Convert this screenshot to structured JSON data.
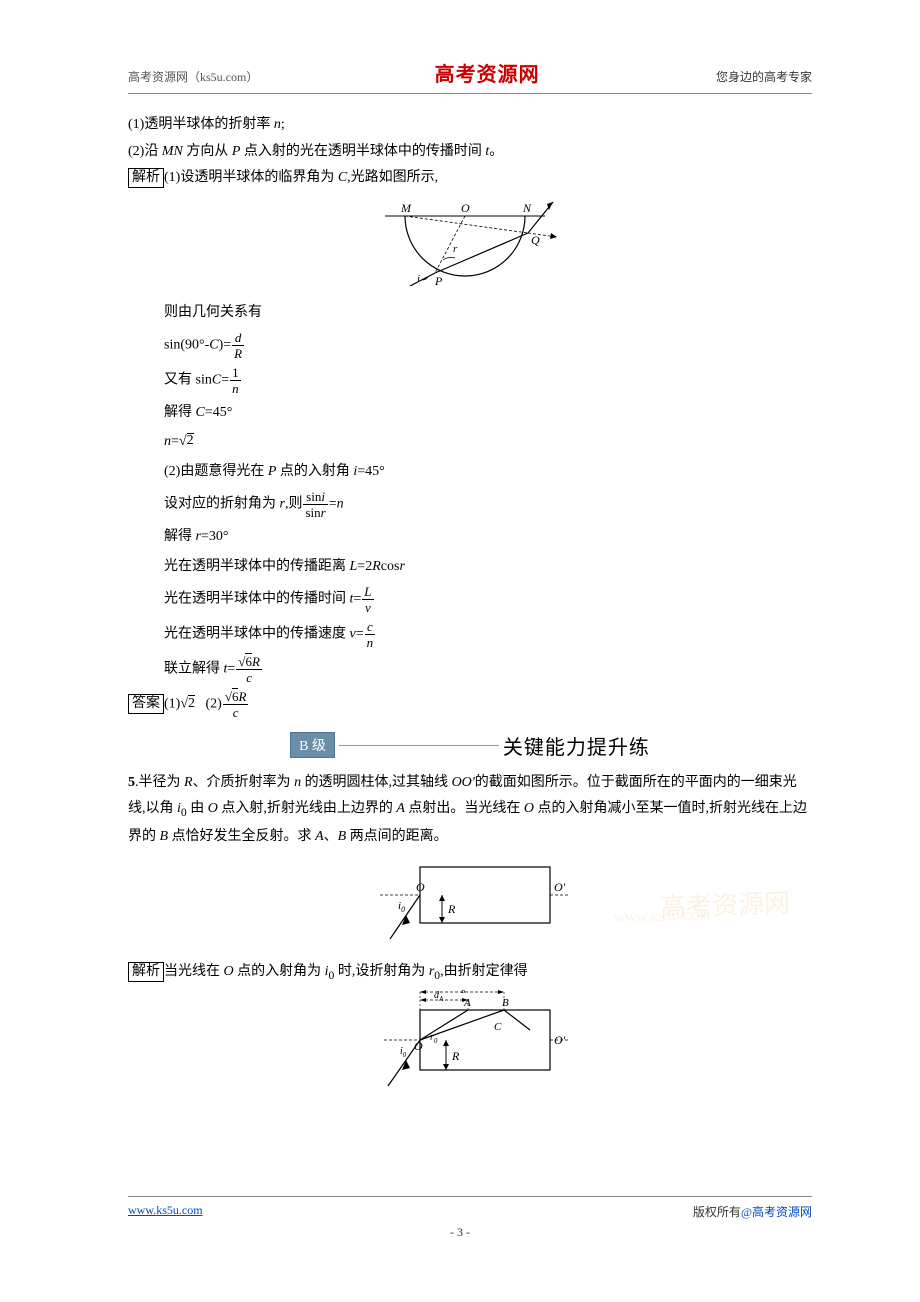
{
  "header": {
    "left": "高考资源网（ks5u.com）",
    "center": "高考资源网",
    "right": "您身边的高考专家"
  },
  "intro": {
    "line1_pre": "(1)透明半球体的折射率 ",
    "line1_var": "n",
    "line1_post": ";",
    "line2_pre": "(2)沿 ",
    "line2_mn": "MN",
    "line2_mid": " 方向从 ",
    "line2_p": "P",
    "line2_mid2": " 点入射的光在透明半球体中的传播时间 ",
    "line2_t": "t",
    "line2_end": "。",
    "jiexi_label": "解析",
    "jiexi_text_pre": "(1)设透明半球体的临界角为 ",
    "jiexi_c": "C",
    "jiexi_text_post": ",光路如图所示,"
  },
  "diagram1": {
    "labels": {
      "M": "M",
      "O": "O",
      "N": "N",
      "Q": "Q",
      "P": "P",
      "i": "i",
      "r": "r"
    },
    "colors": {
      "stroke": "#000000"
    }
  },
  "work": {
    "l1": "则由几何关系有",
    "l2_pre": "sin(90°-",
    "l2_c": "C",
    "l2_mid": ")=",
    "l2_num": "d",
    "l2_den": "R",
    "l3_pre": "又有 sin",
    "l3_c": "C",
    "l3_eq": "=",
    "l3_num": "1",
    "l3_den": "n",
    "l4_pre": "解得 ",
    "l4_c": "C",
    "l4_post": "=45°",
    "l5_n": "n",
    "l5_eq": "=",
    "l5_root": "√2",
    "l6_pre": "(2)由题意得光在 ",
    "l6_p": "P",
    "l6_mid": " 点的入射角 ",
    "l6_i": "i",
    "l6_post": "=45°",
    "l7_pre": "设对应的折射角为 ",
    "l7_r": "r",
    "l7_mid": ",则",
    "l7_num_pre": "sin",
    "l7_num_i": "i",
    "l7_den_pre": "sin",
    "l7_den_r": "r",
    "l7_eq": "=",
    "l7_n": "n",
    "l8_pre": "解得 ",
    "l8_r": "r",
    "l8_post": "=30°",
    "l9_pre": "光在透明半球体中的传播距离 ",
    "l9_L": "L",
    "l9_mid": "=2",
    "l9_R": "R",
    "l9_cos": "cos",
    "l9_r": "r",
    "l10_pre": "光在透明半球体中的传播时间 ",
    "l10_t": "t",
    "l10_eq": "=",
    "l10_num": "L",
    "l10_den": "v",
    "l11_pre": "光在透明半球体中的传播速度 ",
    "l11_v": "v",
    "l11_eq": "=",
    "l11_num": "c",
    "l11_den": "n",
    "l12_pre": "联立解得 ",
    "l12_t": "t",
    "l12_eq": "=",
    "l12_num": "√6R",
    "l12_den": "c"
  },
  "answer": {
    "label": "答案",
    "p1_pre": "(1)",
    "p1_val": "√2",
    "p2_pre": "(2)",
    "p2_num": "√6R",
    "p2_den": "c"
  },
  "section": {
    "badge": "B 级",
    "title": "关键能力提升练"
  },
  "q5": {
    "num": "5",
    "dot": ".",
    "text1_a": "半径为 ",
    "R": "R",
    "text1_b": "、介质折射率为 ",
    "n": "n",
    "text1_c": " 的透明圆柱体,过其轴线 ",
    "OO": "OO'",
    "text1_d": "的截面如图所示。位于截面所在的平面内的一细束光线,以角 ",
    "i0": "i",
    "i0_sub": "0",
    "text1_e": " 由 ",
    "Oa": "O",
    "text1_f": " 点入射,折射光线由上边界的 ",
    "A": "A",
    "text1_g": " 点射出。当光线在 ",
    "Ob": "O",
    "text1_h": " 点的入射角减小至某一值时,折射光线在上边界的 ",
    "B": "B",
    "text1_i": " 点恰好发生全反射。求 ",
    "A2": "A",
    "text1_j": "、",
    "B2": "B",
    "text1_k": " 两点间的距离。"
  },
  "diagram2": {
    "labels": {
      "O": "O",
      "Op": "O'",
      "R": "R",
      "i0": "i",
      "i0sub": "0"
    }
  },
  "q5_jiexi": {
    "label": "解析",
    "text_a": "当光线在 ",
    "O": "O",
    "text_b": " 点的入射角为 ",
    "i0": "i",
    "i0_sub": "0",
    "text_c": " 时,设折射角为 ",
    "r0": "r",
    "r0_sub": "0",
    "text_d": ",由折射定律得"
  },
  "diagram3": {
    "labels": {
      "O": "O",
      "Op": "O'",
      "A": "A",
      "B": "B",
      "C": "C",
      "R": "R",
      "dA": "d",
      "dAsub": "A",
      "dB": "d",
      "dBsub": "B",
      "i0": "i",
      "i0sub": "0",
      "r0": "r",
      "r0sub": "0"
    }
  },
  "watermark": {
    "big": "高考资源网",
    "small": "WWW.KS5U.COM"
  },
  "footer": {
    "left": "www.ks5u.com",
    "right_a": "版权所有",
    "right_b": "@高考资源网",
    "page_num": "- 3 -"
  }
}
